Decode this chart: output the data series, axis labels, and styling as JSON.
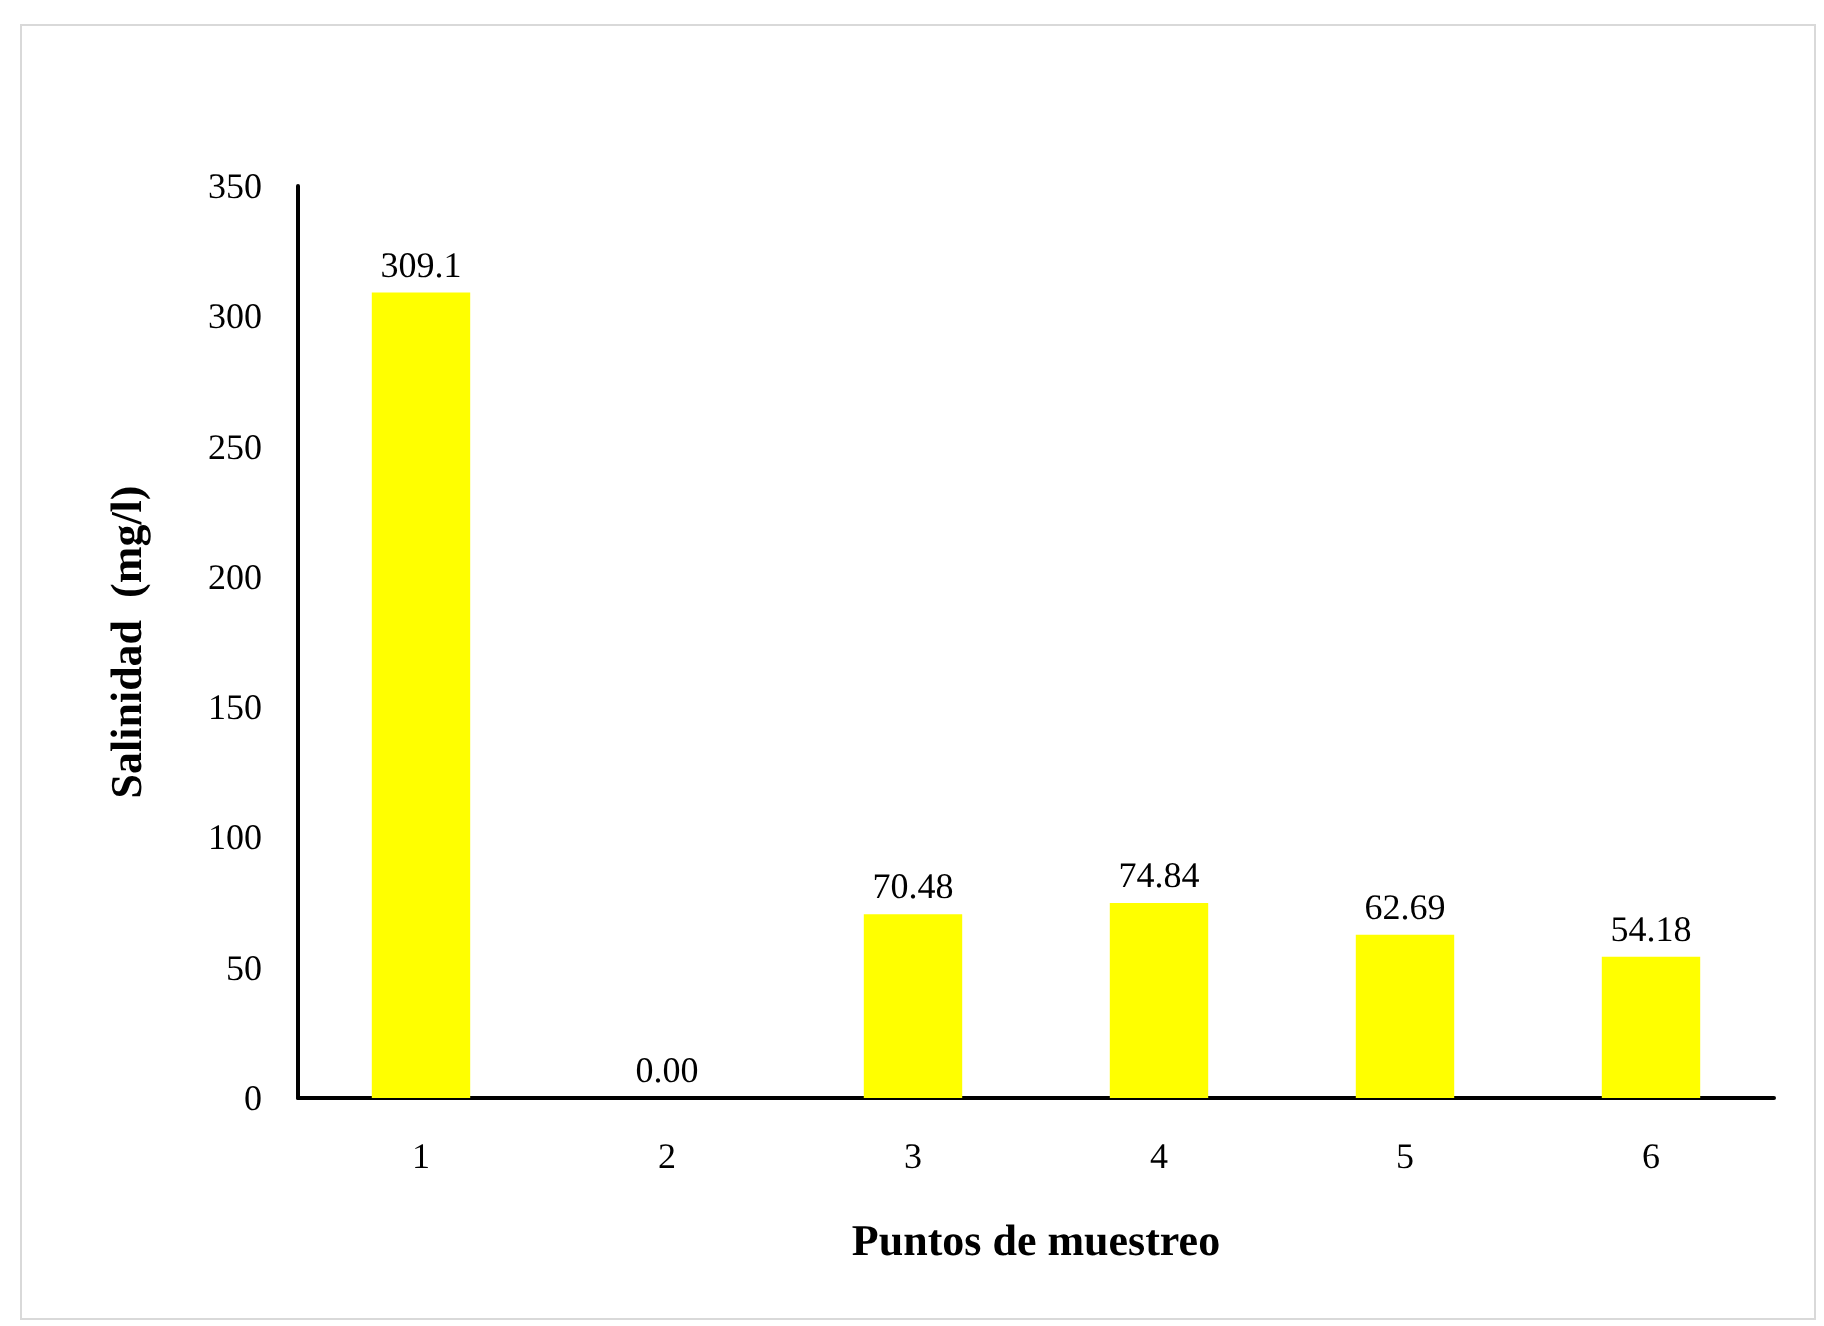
{
  "chart_data": {
    "type": "bar",
    "xlabel": "Puntos de muestreo",
    "ylabel": "Salinidad  (mg/l)",
    "categories": [
      "1",
      "2",
      "3",
      "4",
      "5",
      "6"
    ],
    "values": [
      309.1,
      0,
      70.48,
      74.84,
      62.69,
      54.18
    ],
    "value_labels": [
      "309.1",
      "0.00",
      "70.48",
      "74.84",
      "62.69",
      "54.18"
    ],
    "color": "#ffff00",
    "ylim": [
      0,
      350
    ],
    "yticks": [
      0,
      50,
      100,
      150,
      200,
      250,
      300,
      350
    ],
    "grid": false
  }
}
